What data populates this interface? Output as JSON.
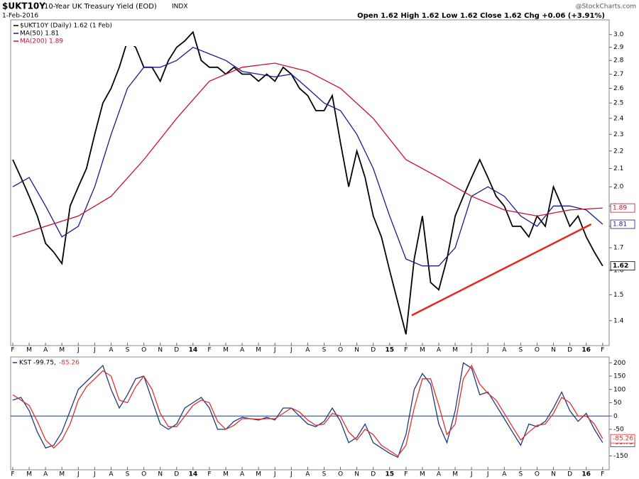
{
  "header": {
    "symbol": "$UKT10Y",
    "name": "10-Year UK Treasury Yield (EOD)",
    "exchange": "INDX",
    "date": "1-Feb-2016",
    "quote": "Open 1.62  High 1.62  Low 1.62  Close 1.62  Chg +0.06 (+3.91%)",
    "source": "@StockCharts.com"
  },
  "chart_data": [
    {
      "type": "line",
      "log_scale": true,
      "x": [
        0,
        0.5,
        1,
        1.5,
        2,
        2.5,
        3,
        3.5,
        4,
        4.5,
        5,
        5.5,
        6,
        6.5,
        7,
        7.5,
        8,
        8.5,
        9,
        9.5,
        10,
        10.5,
        11,
        11.5,
        12,
        12.5,
        13,
        13.5,
        14,
        14.5,
        15,
        15.5,
        16,
        16.5,
        17,
        17.5,
        18,
        18.5,
        19,
        19.5,
        20,
        20.5,
        21,
        21.5,
        22,
        22.5,
        23,
        23.5,
        24,
        24.5,
        25,
        25.5,
        26,
        26.5,
        27,
        27.5,
        28,
        28.5,
        29,
        29.5,
        30,
        30.5,
        31,
        31.5,
        32,
        32.5,
        33,
        33.5,
        34,
        34.5,
        35,
        35.5,
        36
      ],
      "series": [
        {
          "name": "$UKT10Y (Daily) 1.62 (1 Feb)",
          "color": "#000000",
          "values": [
            2.15,
            2.05,
            1.95,
            1.85,
            1.72,
            1.68,
            1.63,
            1.9,
            2.0,
            2.1,
            2.3,
            2.5,
            2.6,
            2.75,
            2.95,
            2.9,
            2.75,
            2.75,
            2.65,
            2.8,
            2.9,
            2.95,
            3.02,
            2.8,
            2.75,
            2.75,
            2.7,
            2.75,
            2.7,
            2.7,
            2.65,
            2.7,
            2.65,
            2.75,
            2.7,
            2.6,
            2.55,
            2.45,
            2.45,
            2.55,
            2.25,
            2.0,
            2.2,
            2.05,
            1.85,
            1.75,
            1.6,
            1.47,
            1.35,
            1.65,
            1.85,
            1.55,
            1.52,
            1.65,
            1.85,
            1.95,
            2.05,
            2.15,
            2.05,
            1.95,
            1.9,
            1.8,
            1.8,
            1.75,
            1.85,
            1.8,
            2.0,
            1.9,
            1.8,
            1.85,
            1.75,
            1.68,
            1.62
          ]
        },
        {
          "name": "MA(50) 1.81",
          "color": "#1a1a8c",
          "x": [
            0,
            1,
            2,
            3,
            4,
            5,
            6,
            7,
            8,
            9,
            10,
            11,
            12,
            13,
            14,
            15,
            16,
            17,
            18,
            19,
            20,
            21,
            22,
            23,
            24,
            25,
            26,
            27,
            28,
            29,
            30,
            31,
            32,
            33,
            34,
            35,
            36
          ],
          "values": [
            2.0,
            2.05,
            1.9,
            1.75,
            1.8,
            2.0,
            2.3,
            2.6,
            2.75,
            2.75,
            2.8,
            2.9,
            2.85,
            2.8,
            2.72,
            2.7,
            2.68,
            2.7,
            2.6,
            2.5,
            2.45,
            2.3,
            2.1,
            1.85,
            1.65,
            1.62,
            1.62,
            1.7,
            1.95,
            2.0,
            1.95,
            1.85,
            1.8,
            1.9,
            1.9,
            1.88,
            1.81
          ]
        },
        {
          "name": "MA(200) 1.89",
          "color": "#c8102e",
          "x": [
            0,
            2,
            4,
            6,
            8,
            10,
            12,
            14,
            16,
            18,
            20,
            22,
            24,
            26,
            28,
            30,
            32,
            34,
            36
          ],
          "values": [
            1.75,
            1.8,
            1.85,
            1.95,
            2.15,
            2.4,
            2.65,
            2.75,
            2.78,
            2.72,
            2.6,
            2.4,
            2.15,
            2.05,
            1.95,
            1.88,
            1.85,
            1.88,
            1.89
          ]
        }
      ],
      "trendline": {
        "color": "#e8251f",
        "x": [
          24.35,
          35.3
        ],
        "values": [
          1.42,
          1.81
        ]
      },
      "xlim": [
        -0.13,
        36.4
      ],
      "ylim": [
        1.31,
        3.12
      ],
      "yticks": [
        1.4,
        1.5,
        1.6,
        1.7,
        1.8,
        1.9,
        {
          "value": 2,
          "label": "2.0"
        },
        2.1,
        2.2,
        2.3,
        2.4,
        2.5,
        2.6,
        2.7,
        2.8,
        2.9,
        {
          "value": 3,
          "label": "3.0"
        }
      ],
      "xticks": [
        {
          "value": 0,
          "label": "F"
        },
        {
          "value": 1,
          "label": "M"
        },
        {
          "value": 2,
          "label": "A"
        },
        {
          "value": 3,
          "label": "M"
        },
        {
          "value": 4,
          "label": "J"
        },
        {
          "value": 5,
          "label": "J"
        },
        {
          "value": 6,
          "label": "A"
        },
        {
          "value": 7,
          "label": "S"
        },
        {
          "value": 8,
          "label": "O"
        },
        {
          "value": 9,
          "label": "N"
        },
        {
          "value": 10,
          "label": "D"
        },
        {
          "value": 11,
          "label": "14"
        },
        {
          "value": 12,
          "label": "F"
        },
        {
          "value": 13,
          "label": "M"
        },
        {
          "value": 14,
          "label": "A"
        },
        {
          "value": 15,
          "label": "M"
        },
        {
          "value": 16,
          "label": "J"
        },
        {
          "value": 17,
          "label": "J"
        },
        {
          "value": 18,
          "label": "A"
        },
        {
          "value": 19,
          "label": "S"
        },
        {
          "value": 20,
          "label": "O"
        },
        {
          "value": 21,
          "label": "N"
        },
        {
          "value": 22,
          "label": "D"
        },
        {
          "value": 23,
          "label": "15"
        },
        {
          "value": 24,
          "label": "F"
        },
        {
          "value": 25,
          "label": "M"
        },
        {
          "value": 26,
          "label": "A"
        },
        {
          "value": 27,
          "label": "M"
        },
        {
          "value": 28,
          "label": "J"
        },
        {
          "value": 29,
          "label": "J"
        },
        {
          "value": 30,
          "label": "A"
        },
        {
          "value": 31,
          "label": "S"
        },
        {
          "value": 32,
          "label": "O"
        },
        {
          "value": 33,
          "label": "N"
        },
        {
          "value": 34,
          "label": "D"
        },
        {
          "value": 35,
          "label": "16"
        },
        {
          "value": 36,
          "label": "F"
        }
      ]
    },
    {
      "type": "line",
      "log_scale": false,
      "x": [
        0,
        0.5,
        1,
        1.5,
        2,
        2.5,
        3,
        3.5,
        4,
        4.5,
        5,
        5.5,
        6,
        6.5,
        7,
        7.5,
        8,
        8.5,
        9,
        9.5,
        10,
        10.5,
        11,
        11.5,
        12,
        12.5,
        13,
        13.5,
        14,
        14.5,
        15,
        15.5,
        16,
        16.5,
        17,
        17.5,
        18,
        18.5,
        19,
        19.5,
        20,
        20.5,
        21,
        21.5,
        22,
        22.5,
        23,
        23.5,
        24,
        24.5,
        25,
        25.5,
        26,
        26.5,
        27,
        27.5,
        28,
        28.5,
        29,
        29.5,
        30,
        30.5,
        31,
        31.5,
        32,
        32.5,
        33,
        33.5,
        34,
        34.5,
        35,
        35.5,
        36
      ],
      "series": [
        {
          "name": "KST -99.75,",
          "color": "#1f3a7a",
          "values": [
            60,
            70,
            20,
            -60,
            -120,
            -110,
            -60,
            20,
            100,
            130,
            160,
            190,
            100,
            30,
            80,
            140,
            150,
            60,
            -30,
            -50,
            -30,
            30,
            50,
            70,
            30,
            -50,
            -50,
            -20,
            -5,
            -10,
            -15,
            -5,
            -15,
            30,
            30,
            0,
            -30,
            -40,
            -20,
            30,
            -20,
            -100,
            -80,
            -30,
            -100,
            -120,
            -140,
            -155,
            -70,
            100,
            160,
            120,
            -30,
            -100,
            20,
            200,
            180,
            80,
            90,
            40,
            -10,
            -60,
            -110,
            -30,
            -40,
            -20,
            30,
            90,
            20,
            -20,
            10,
            -50,
            -99.75
          ]
        },
        {
          "name": "-85.26",
          "color": "#e03030",
          "values": [
            80,
            60,
            40,
            -20,
            -90,
            -120,
            -90,
            -30,
            60,
            110,
            140,
            170,
            150,
            60,
            50,
            110,
            150,
            100,
            10,
            -40,
            -40,
            0,
            40,
            60,
            50,
            -20,
            -50,
            -35,
            -10,
            -10,
            -12,
            -10,
            -10,
            10,
            30,
            15,
            -15,
            -35,
            -30,
            10,
            0,
            -60,
            -90,
            -50,
            -70,
            -110,
            -130,
            -150,
            -110,
            30,
            140,
            140,
            40,
            -70,
            -30,
            140,
            190,
            120,
            85,
            60,
            10,
            -40,
            -90,
            -60,
            -35,
            -30,
            10,
            70,
            50,
            0,
            0,
            -30,
            -85.26
          ]
        }
      ],
      "zero_line": 0,
      "xlim": [
        -0.13,
        36.4
      ],
      "ylim": [
        -202,
        222
      ],
      "yticks": [
        -150,
        -50,
        0,
        50,
        100,
        150,
        200
      ],
      "xticks": [
        {
          "value": 0,
          "label": "F"
        },
        {
          "value": 1,
          "label": "M"
        },
        {
          "value": 2,
          "label": "A"
        },
        {
          "value": 3,
          "label": "M"
        },
        {
          "value": 4,
          "label": "J"
        },
        {
          "value": 5,
          "label": "J"
        },
        {
          "value": 6,
          "label": "A"
        },
        {
          "value": 7,
          "label": "S"
        },
        {
          "value": 8,
          "label": "O"
        },
        {
          "value": 9,
          "label": "N"
        },
        {
          "value": 10,
          "label": "D"
        },
        {
          "value": 11,
          "label": "14"
        },
        {
          "value": 12,
          "label": "F"
        },
        {
          "value": 13,
          "label": "M"
        },
        {
          "value": 14,
          "label": "A"
        },
        {
          "value": 15,
          "label": "M"
        },
        {
          "value": 16,
          "label": "J"
        },
        {
          "value": 17,
          "label": "J"
        },
        {
          "value": 18,
          "label": "A"
        },
        {
          "value": 19,
          "label": "S"
        },
        {
          "value": 20,
          "label": "O"
        },
        {
          "value": 21,
          "label": "N"
        },
        {
          "value": 22,
          "label": "D"
        },
        {
          "value": 23,
          "label": "15"
        },
        {
          "value": 24,
          "label": "F"
        },
        {
          "value": 25,
          "label": "M"
        },
        {
          "value": 26,
          "label": "A"
        },
        {
          "value": 27,
          "label": "M"
        },
        {
          "value": 28,
          "label": "J"
        },
        {
          "value": 29,
          "label": "J"
        },
        {
          "value": 30,
          "label": "A"
        },
        {
          "value": 31,
          "label": "S"
        },
        {
          "value": 32,
          "label": "O"
        },
        {
          "value": 33,
          "label": "N"
        },
        {
          "value": 34,
          "label": "D"
        },
        {
          "value": 35,
          "label": "16"
        },
        {
          "value": 36,
          "label": "F"
        }
      ]
    }
  ]
}
